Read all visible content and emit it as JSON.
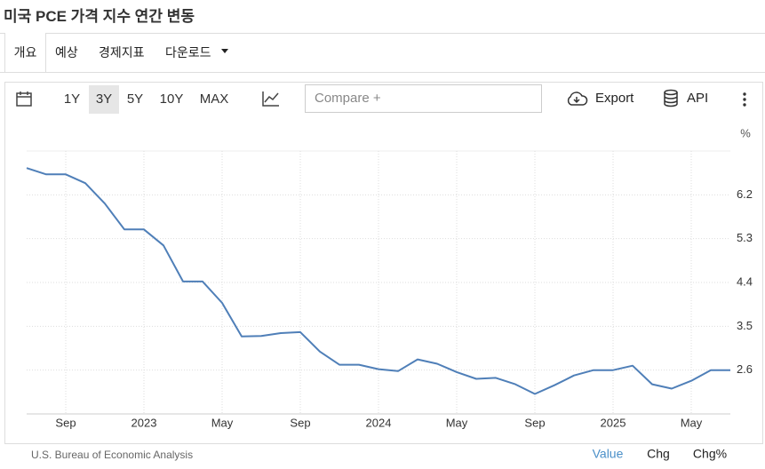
{
  "header": {
    "title": "미국 PCE 가격 지수 연간 변동"
  },
  "tabs": [
    "개요",
    "예상",
    "경제지표",
    "다운로드"
  ],
  "toolbar": {
    "ranges": [
      "1Y",
      "3Y",
      "5Y",
      "10Y",
      "MAX"
    ],
    "compare": "Compare +",
    "export": "Export",
    "api": "API"
  },
  "chart_data": {
    "type": "line",
    "unit": "%",
    "categories": [
      null,
      null,
      "Sep",
      null,
      null,
      null,
      "2023",
      null,
      null,
      null,
      "May",
      null,
      null,
      null,
      "Sep",
      null,
      null,
      null,
      "2024",
      null,
      null,
      null,
      "May",
      null,
      null,
      null,
      "Sep",
      null,
      null,
      null,
      "2025",
      null,
      null,
      null,
      "May",
      null,
      null
    ],
    "series": [
      {
        "color": "#4f7fb8",
        "values": [
          6.75,
          6.62,
          6.62,
          6.44,
          6.02,
          5.49,
          5.49,
          5.16,
          4.42,
          4.42,
          3.98,
          3.29,
          3.3,
          3.36,
          3.38,
          2.98,
          2.71,
          2.71,
          2.62,
          2.58,
          2.82,
          2.73,
          2.56,
          2.42,
          2.44,
          2.31,
          2.11,
          2.29,
          2.49,
          2.6,
          2.6,
          2.69,
          2.31,
          2.22,
          2.38,
          2.6,
          2.6
        ]
      }
    ],
    "ylim": [
      1.7,
      7.1
    ],
    "yticks": [
      2.6,
      3.5,
      4.4,
      5.3,
      6.2
    ],
    "grid": true
  },
  "footer": {
    "source": "U.S. Bureau of Economic Analysis",
    "modes": [
      "Value",
      "Chg",
      "Chg%"
    ]
  }
}
